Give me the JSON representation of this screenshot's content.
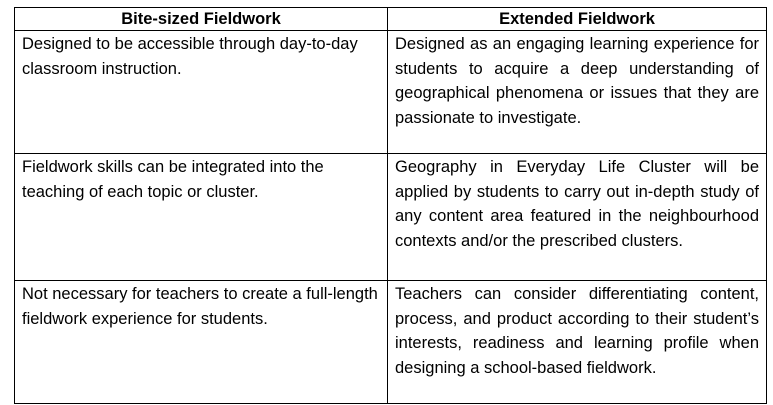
{
  "table": {
    "headers": [
      "Bite-sized Fieldwork",
      "Extended Fieldwork"
    ],
    "rows": [
      {
        "bite_sized": "Designed to be accessible through day-to-day classroom instruction.",
        "extended": "Designed as an engaging learning experience for students to acquire a deep understanding of geographical phenomena or issues that they are passionate to investigate."
      },
      {
        "bite_sized": "Fieldwork skills can be integrated into the teaching of each topic or cluster.",
        "extended": "Geography in Everyday Life Cluster will be applied by students to carry out in-depth study of any content area featured in the neighbourhood contexts and/or the prescribed clusters."
      },
      {
        "bite_sized": "Not necessary for teachers to create a full-length fieldwork experience for students.",
        "extended": "Teachers can consider differentiating content, process, and product according to their student’s interests, readiness and learning profile when designing a school-based fieldwork."
      }
    ]
  }
}
